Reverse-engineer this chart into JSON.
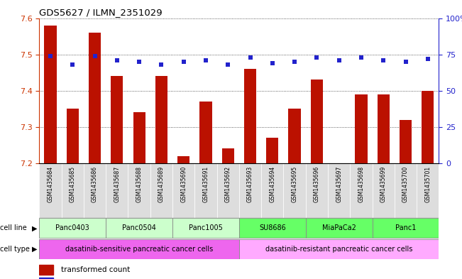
{
  "title": "GDS5627 / ILMN_2351029",
  "samples": [
    "GSM1435684",
    "GSM1435685",
    "GSM1435686",
    "GSM1435687",
    "GSM1435688",
    "GSM1435689",
    "GSM1435690",
    "GSM1435691",
    "GSM1435692",
    "GSM1435693",
    "GSM1435694",
    "GSM1435695",
    "GSM1435696",
    "GSM1435697",
    "GSM1435698",
    "GSM1435699",
    "GSM1435700",
    "GSM1435701"
  ],
  "transformed_counts": [
    7.58,
    7.35,
    7.56,
    7.44,
    7.34,
    7.44,
    7.22,
    7.37,
    7.24,
    7.46,
    7.27,
    7.35,
    7.43,
    7.2,
    7.39,
    7.39,
    7.32,
    7.4
  ],
  "percentile_ranks": [
    74,
    68,
    74,
    71,
    70,
    68,
    70,
    71,
    68,
    73,
    69,
    70,
    73,
    71,
    73,
    71,
    70,
    72
  ],
  "ylim_left": [
    7.2,
    7.6
  ],
  "ylim_right": [
    0,
    100
  ],
  "yticks_left": [
    7.2,
    7.3,
    7.4,
    7.5,
    7.6
  ],
  "yticks_right": [
    0,
    25,
    50,
    75,
    100
  ],
  "cell_lines": [
    {
      "label": "Panc0403",
      "start": 0,
      "end": 2,
      "color": "#ccffcc"
    },
    {
      "label": "Panc0504",
      "start": 3,
      "end": 5,
      "color": "#ccffcc"
    },
    {
      "label": "Panc1005",
      "start": 6,
      "end": 8,
      "color": "#ccffcc"
    },
    {
      "label": "SU8686",
      "start": 9,
      "end": 11,
      "color": "#66ff66"
    },
    {
      "label": "MiaPaCa2",
      "start": 12,
      "end": 14,
      "color": "#66ff66"
    },
    {
      "label": "Panc1",
      "start": 15,
      "end": 17,
      "color": "#66ff66"
    }
  ],
  "cell_types": [
    {
      "label": "dasatinib-sensitive pancreatic cancer cells",
      "start": 0,
      "end": 8,
      "color": "#ee66ee"
    },
    {
      "label": "dasatinib-resistant pancreatic cancer cells",
      "start": 9,
      "end": 17,
      "color": "#ffaaff"
    }
  ],
  "bar_color": "#bb1100",
  "dot_color": "#2222cc",
  "bar_width": 0.55,
  "background_color": "#ffffff",
  "left_label_color": "#cc3300",
  "right_label_color": "#2222cc",
  "xtick_bg": "#dddddd",
  "grid_dotted_color": "#333333"
}
